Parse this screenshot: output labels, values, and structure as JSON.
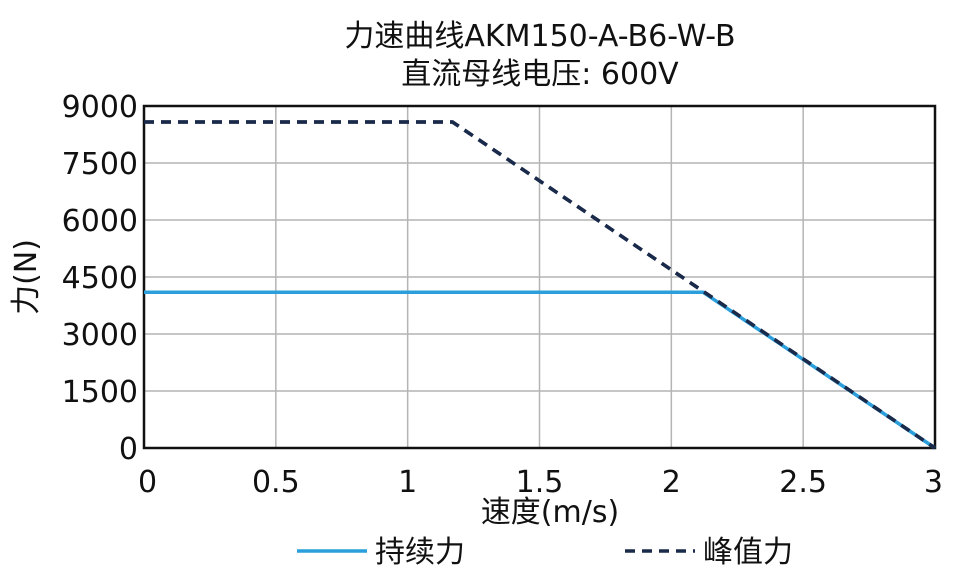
{
  "chart_data": {
    "type": "line",
    "title": "力速曲线AKM150-A-B6-W-B",
    "subtitle": "直流母线电压: 600V",
    "xlabel": "速度(m/s)",
    "ylabel": "力(N)",
    "xlim": [
      0,
      3
    ],
    "ylim": [
      0,
      9000
    ],
    "xticks": [
      0,
      0.5,
      1,
      1.5,
      2,
      2.5,
      3
    ],
    "xtick_labels": [
      "0",
      "0.5",
      "1",
      "1.5",
      "2",
      "2.5",
      "3"
    ],
    "yticks": [
      0,
      1500,
      3000,
      4500,
      6000,
      7500,
      9000
    ],
    "ytick_labels": [
      "0",
      "1500",
      "3000",
      "4500",
      "6000",
      "7500",
      "9000"
    ],
    "grid": true,
    "legend_position": "bottom",
    "series": [
      {
        "name": "持续力",
        "color": "#2a9fdc",
        "style": "solid",
        "x": [
          0,
          2.12,
          3.0
        ],
        "y": [
          4100,
          4100,
          0
        ]
      },
      {
        "name": "峰值力",
        "color": "#1a2a4a",
        "style": "dashed",
        "x": [
          0,
          1.17,
          3.0
        ],
        "y": [
          8580,
          8580,
          0
        ]
      }
    ]
  }
}
